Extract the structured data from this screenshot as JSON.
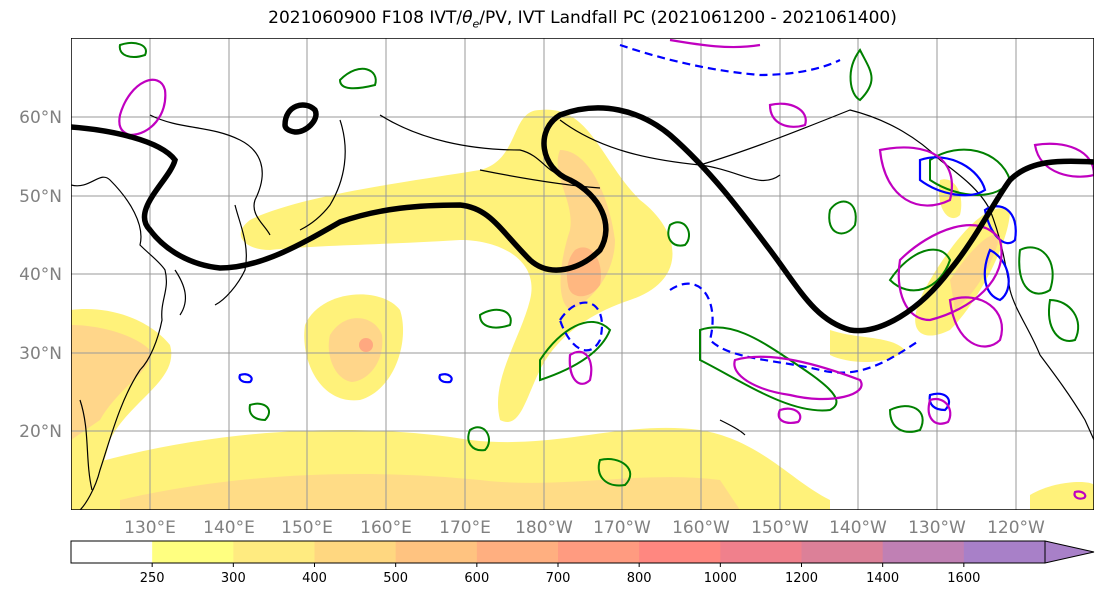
{
  "title_prefix": "2021060900 F108 IVT/",
  "title_theta": "θ",
  "title_theta_sub": "e",
  "title_suffix": "/PV, IVT Landfall PC (2021061200 - 2021061400)",
  "lat_labels": [
    "60°N",
    "50°N",
    "40°N",
    "30°N",
    "20°N"
  ],
  "lon_labels": [
    "130°E",
    "140°E",
    "150°E",
    "160°E",
    "170°E",
    "180°W",
    "170°W",
    "160°W",
    "150°W",
    "140°W",
    "130°W",
    "120°W"
  ],
  "colorbar": {
    "labels": [
      "250",
      "300",
      "400",
      "500",
      "600",
      "700",
      "800",
      "1000",
      "1200",
      "1400",
      "1600"
    ],
    "colors": [
      "#ffffff",
      "#ffff80",
      "#ffeb80",
      "#ffd780",
      "#ffc380",
      "#ffaf80",
      "#ff9b80",
      "#ff8780",
      "#f0808c",
      "#dc8098",
      "#c080b4",
      "#a880c8"
    ]
  },
  "map_colors": {
    "ocean": "#ffffff",
    "coast": "#000000",
    "ivt_low": "#fff27a",
    "ivt_mid": "#ffd68a",
    "ivt_high": "#ffb780",
    "pv_contour": "#000000",
    "green_contour": "#008000",
    "blue_contour": "#0000ff",
    "magenta_contour": "#c000c0",
    "grid": "#999999"
  }
}
